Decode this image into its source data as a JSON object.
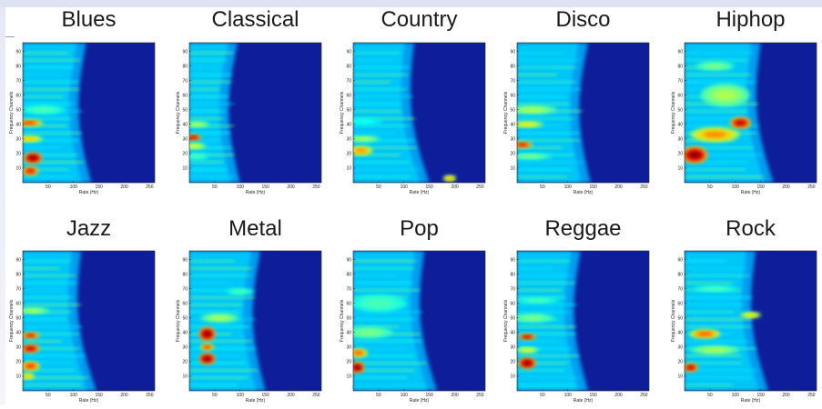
{
  "colors": {
    "low": "#0e1e9b",
    "accent": "#dfe3f1"
  },
  "chart_data": [
    {
      "type": "heatmap",
      "title": "Blues",
      "xlabel": "Rate (Hz)",
      "ylabel": "Frequency Channels",
      "xticks": [
        "50",
        "100",
        "150",
        "200",
        "250"
      ],
      "yticks": [
        "10",
        "20",
        "30",
        "40",
        "50",
        "60",
        "70",
        "80",
        "90"
      ],
      "xlim": [
        0,
        260
      ],
      "ylim": [
        0,
        96
      ],
      "colormap": "jet",
      "hotspots": [
        {
          "x": 20,
          "y": 17,
          "w": 30,
          "h": 4,
          "v": 1.0
        },
        {
          "x": 15,
          "y": 8,
          "w": 25,
          "h": 3,
          "v": 0.9
        },
        {
          "x": 12,
          "y": 41,
          "w": 50,
          "h": 2,
          "v": 0.85
        },
        {
          "x": 12,
          "y": 30,
          "w": 50,
          "h": 2,
          "v": 0.7
        },
        {
          "x": 40,
          "y": 50,
          "w": 80,
          "h": 3,
          "v": 0.45
        }
      ],
      "envelope": {
        "start": 135,
        "end": 125
      }
    },
    {
      "type": "heatmap",
      "title": "Classical",
      "xlabel": "Rate (Hz)",
      "ylabel": "Frequency Channels",
      "xticks": [
        "50",
        "100",
        "150",
        "200",
        "250"
      ],
      "yticks": [
        "10",
        "20",
        "30",
        "40",
        "50",
        "60",
        "70",
        "80",
        "90"
      ],
      "xlim": [
        0,
        260
      ],
      "ylim": [
        0,
        96
      ],
      "colormap": "jet",
      "hotspots": [
        {
          "x": 8,
          "y": 31,
          "w": 25,
          "h": 2,
          "v": 0.95
        },
        {
          "x": 10,
          "y": 25,
          "w": 40,
          "h": 2,
          "v": 0.6
        },
        {
          "x": 15,
          "y": 40,
          "w": 45,
          "h": 2,
          "v": 0.55
        },
        {
          "x": 15,
          "y": 18,
          "w": 40,
          "h": 2,
          "v": 0.45
        }
      ],
      "envelope": {
        "start": 100,
        "end": 95
      }
    },
    {
      "type": "heatmap",
      "title": "Country",
      "xlabel": "Rate (Hz)",
      "ylabel": "Frequency Channels",
      "xticks": [
        "50",
        "100",
        "150",
        "200",
        "250"
      ],
      "yticks": [
        "10",
        "20",
        "30",
        "40",
        "50",
        "60",
        "70",
        "80",
        "90"
      ],
      "xlim": [
        0,
        260
      ],
      "ylim": [
        0,
        96
      ],
      "colormap": "jet",
      "hotspots": [
        {
          "x": 15,
          "y": 22,
          "w": 40,
          "h": 3,
          "v": 0.75
        },
        {
          "x": 20,
          "y": 30,
          "w": 60,
          "h": 2,
          "v": 0.55
        },
        {
          "x": 190,
          "y": 3,
          "w": 18,
          "h": 2,
          "v": 0.7
        },
        {
          "x": 20,
          "y": 42,
          "w": 70,
          "h": 2,
          "v": 0.4
        }
      ],
      "envelope": {
        "start": 150,
        "end": 120
      }
    },
    {
      "type": "heatmap",
      "title": "Disco",
      "xlabel": "Rate (Hz)",
      "ylabel": "Frequency Channels",
      "xticks": [
        "50",
        "100",
        "150",
        "200",
        "250"
      ],
      "yticks": [
        "10",
        "20",
        "30",
        "40",
        "50",
        "60",
        "70",
        "80",
        "90"
      ],
      "xlim": [
        0,
        260
      ],
      "ylim": [
        0,
        96
      ],
      "colormap": "jet",
      "hotspots": [
        {
          "x": 10,
          "y": 26,
          "w": 35,
          "h": 2,
          "v": 0.9
        },
        {
          "x": 20,
          "y": 40,
          "w": 60,
          "h": 2,
          "v": 0.65
        },
        {
          "x": 30,
          "y": 50,
          "w": 90,
          "h": 3,
          "v": 0.55
        },
        {
          "x": 25,
          "y": 18,
          "w": 80,
          "h": 2,
          "v": 0.5
        }
      ],
      "envelope": {
        "start": 145,
        "end": 140
      }
    },
    {
      "type": "heatmap",
      "title": "Hiphop",
      "xlabel": "Rate (Hz)",
      "ylabel": "Frequency Channels",
      "xticks": [
        "50",
        "100",
        "150",
        "200",
        "250"
      ],
      "yticks": [
        "10",
        "20",
        "30",
        "40",
        "50",
        "60",
        "70",
        "80",
        "90"
      ],
      "xlim": [
        0,
        260
      ],
      "ylim": [
        0,
        96
      ],
      "colormap": "jet",
      "hotspots": [
        {
          "x": 20,
          "y": 19,
          "w": 45,
          "h": 6,
          "v": 1.0
        },
        {
          "x": 110,
          "y": 41,
          "w": 35,
          "h": 4,
          "v": 0.95
        },
        {
          "x": 60,
          "y": 33,
          "w": 90,
          "h": 5,
          "v": 0.75
        },
        {
          "x": 80,
          "y": 60,
          "w": 90,
          "h": 8,
          "v": 0.55
        },
        {
          "x": 60,
          "y": 80,
          "w": 70,
          "h": 3,
          "v": 0.5
        }
      ],
      "envelope": {
        "start": 175,
        "end": 150
      }
    },
    {
      "type": "heatmap",
      "title": "Jazz",
      "xlabel": "Rate (Hz)",
      "ylabel": "Frequency Channels",
      "xticks": [
        "50",
        "100",
        "150",
        "200",
        "250"
      ],
      "yticks": [
        "10",
        "20",
        "30",
        "40",
        "50",
        "60",
        "70",
        "80",
        "90"
      ],
      "xlim": [
        0,
        260
      ],
      "ylim": [
        0,
        96
      ],
      "colormap": "jet",
      "hotspots": [
        {
          "x": 15,
          "y": 29,
          "w": 30,
          "h": 3,
          "v": 0.95
        },
        {
          "x": 15,
          "y": 38,
          "w": 30,
          "h": 2,
          "v": 0.9
        },
        {
          "x": 15,
          "y": 17,
          "w": 30,
          "h": 3,
          "v": 0.85
        },
        {
          "x": 10,
          "y": 10,
          "w": 20,
          "h": 2,
          "v": 0.7
        },
        {
          "x": 20,
          "y": 55,
          "w": 60,
          "h": 2,
          "v": 0.55
        }
      ],
      "envelope": {
        "start": 145,
        "end": 115
      }
    },
    {
      "type": "heatmap",
      "title": "Metal",
      "xlabel": "Rate (Hz)",
      "ylabel": "Frequency Channels",
      "xticks": [
        "50",
        "100",
        "150",
        "200",
        "250"
      ],
      "yticks": [
        "10",
        "20",
        "30",
        "40",
        "50",
        "60",
        "70",
        "80",
        "90"
      ],
      "xlim": [
        0,
        260
      ],
      "ylim": [
        0,
        96
      ],
      "colormap": "jet",
      "hotspots": [
        {
          "x": 35,
          "y": 39,
          "w": 25,
          "h": 5,
          "v": 1.0
        },
        {
          "x": 35,
          "y": 22,
          "w": 25,
          "h": 4,
          "v": 1.0
        },
        {
          "x": 35,
          "y": 30,
          "w": 20,
          "h": 2,
          "v": 0.85
        },
        {
          "x": 60,
          "y": 50,
          "w": 70,
          "h": 3,
          "v": 0.55
        },
        {
          "x": 100,
          "y": 68,
          "w": 50,
          "h": 2,
          "v": 0.45
        }
      ],
      "envelope": {
        "start": 150,
        "end": 140
      }
    },
    {
      "type": "heatmap",
      "title": "Pop",
      "xlabel": "Rate (Hz)",
      "ylabel": "Frequency Channels",
      "xticks": [
        "50",
        "100",
        "150",
        "200",
        "250"
      ],
      "yticks": [
        "10",
        "20",
        "30",
        "40",
        "50",
        "60",
        "70",
        "80",
        "90"
      ],
      "xlim": [
        0,
        260
      ],
      "ylim": [
        0,
        96
      ],
      "colormap": "jet",
      "hotspots": [
        {
          "x": 8,
          "y": 16,
          "w": 20,
          "h": 4,
          "v": 1.0
        },
        {
          "x": 10,
          "y": 26,
          "w": 30,
          "h": 3,
          "v": 0.8
        },
        {
          "x": 30,
          "y": 40,
          "w": 90,
          "h": 4,
          "v": 0.5
        },
        {
          "x": 50,
          "y": 60,
          "w": 100,
          "h": 6,
          "v": 0.45
        }
      ],
      "envelope": {
        "start": 165,
        "end": 140
      }
    },
    {
      "type": "heatmap",
      "title": "Reggae",
      "xlabel": "Rate (Hz)",
      "ylabel": "Frequency Channels",
      "xticks": [
        "50",
        "100",
        "150",
        "200",
        "250"
      ],
      "yticks": [
        "10",
        "20",
        "30",
        "40",
        "50",
        "60",
        "70",
        "80",
        "90"
      ],
      "xlim": [
        0,
        260
      ],
      "ylim": [
        0,
        96
      ],
      "colormap": "jet",
      "hotspots": [
        {
          "x": 20,
          "y": 19,
          "w": 28,
          "h": 4,
          "v": 1.0
        },
        {
          "x": 20,
          "y": 37,
          "w": 28,
          "h": 2,
          "v": 0.95
        },
        {
          "x": 20,
          "y": 28,
          "w": 40,
          "h": 2,
          "v": 0.6
        },
        {
          "x": 30,
          "y": 50,
          "w": 80,
          "h": 3,
          "v": 0.5
        },
        {
          "x": 40,
          "y": 62,
          "w": 80,
          "h": 2,
          "v": 0.45
        }
      ],
      "envelope": {
        "start": 140,
        "end": 125
      }
    },
    {
      "type": "heatmap",
      "title": "Rock",
      "xlabel": "Rate (Hz)",
      "ylabel": "Frequency Channels",
      "xticks": [
        "50",
        "100",
        "150",
        "200",
        "250"
      ],
      "yticks": [
        "10",
        "20",
        "30",
        "40",
        "50",
        "60",
        "70",
        "80",
        "90"
      ],
      "xlim": [
        0,
        260
      ],
      "ylim": [
        0,
        96
      ],
      "colormap": "jet",
      "hotspots": [
        {
          "x": 12,
          "y": 16,
          "w": 22,
          "h": 3,
          "v": 0.95
        },
        {
          "x": 40,
          "y": 39,
          "w": 55,
          "h": 3,
          "v": 0.8
        },
        {
          "x": 130,
          "y": 52,
          "w": 35,
          "h": 2,
          "v": 0.65
        },
        {
          "x": 60,
          "y": 28,
          "w": 90,
          "h": 3,
          "v": 0.55
        },
        {
          "x": 60,
          "y": 70,
          "w": 80,
          "h": 2,
          "v": 0.45
        }
      ],
      "envelope": {
        "start": 165,
        "end": 140
      }
    }
  ]
}
